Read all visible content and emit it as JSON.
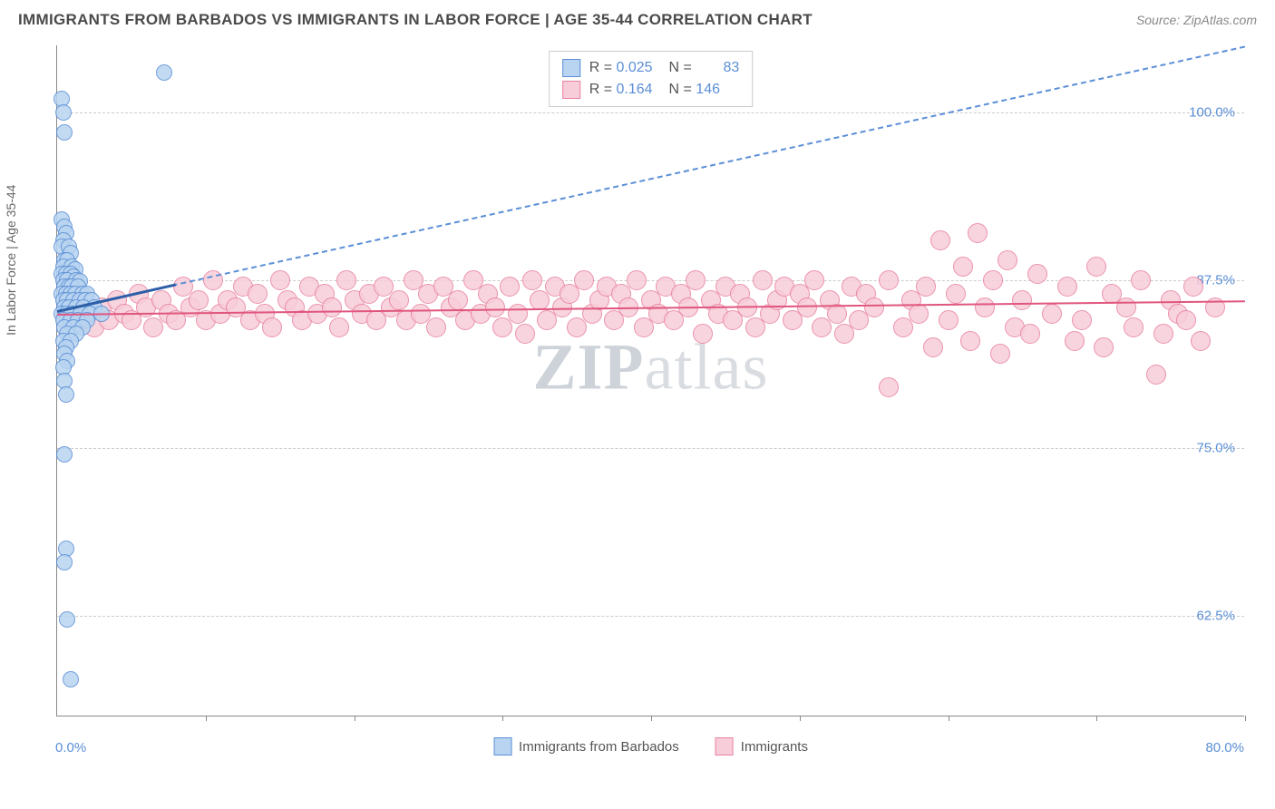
{
  "header": {
    "title": "IMMIGRANTS FROM BARBADOS VS IMMIGRANTS IN LABOR FORCE | AGE 35-44 CORRELATION CHART",
    "source": "Source: ZipAtlas.com"
  },
  "axes": {
    "y_title": "In Labor Force | Age 35-44",
    "x_min_label": "0.0%",
    "x_max_label": "80.0%",
    "xlim": [
      0,
      80
    ],
    "ylim": [
      55,
      105
    ],
    "y_ticks": [
      {
        "value": 62.5,
        "label": "62.5%"
      },
      {
        "value": 75.0,
        "label": "75.0%"
      },
      {
        "value": 87.5,
        "label": "87.5%"
      },
      {
        "value": 100.0,
        "label": "100.0%"
      }
    ],
    "x_tick_positions": [
      10,
      20,
      30,
      40,
      50,
      60,
      70,
      80
    ],
    "grid_color": "#cccccc",
    "axis_color": "#888888"
  },
  "series": {
    "blue": {
      "name": "Immigrants from Barbados",
      "fill": "#b8d4f0",
      "stroke": "#5b8fd6",
      "marker_radius": 9,
      "stats": {
        "R": "0.025",
        "N": "83"
      },
      "trend_solid": {
        "x1": 0,
        "y1": 85.3,
        "x2": 8,
        "y2": 87.3,
        "color": "#2d5fa8",
        "width": 3
      },
      "trend_dashed": {
        "x1": 0,
        "y1": 85.3,
        "x2": 80,
        "y2": 105,
        "color": "#5b8fd6"
      },
      "points": [
        {
          "x": 0.3,
          "y": 101
        },
        {
          "x": 0.4,
          "y": 100
        },
        {
          "x": 0.5,
          "y": 98.5
        },
        {
          "x": 0.3,
          "y": 92
        },
        {
          "x": 0.5,
          "y": 91.5
        },
        {
          "x": 0.6,
          "y": 91
        },
        {
          "x": 0.4,
          "y": 90.5
        },
        {
          "x": 0.3,
          "y": 90
        },
        {
          "x": 0.8,
          "y": 90
        },
        {
          "x": 0.9,
          "y": 89.5
        },
        {
          "x": 0.5,
          "y": 89
        },
        {
          "x": 0.7,
          "y": 89
        },
        {
          "x": 0.4,
          "y": 88.5
        },
        {
          "x": 1.0,
          "y": 88.5
        },
        {
          "x": 1.2,
          "y": 88.3
        },
        {
          "x": 0.3,
          "y": 88
        },
        {
          "x": 0.6,
          "y": 88
        },
        {
          "x": 0.9,
          "y": 88
        },
        {
          "x": 1.1,
          "y": 87.8
        },
        {
          "x": 0.4,
          "y": 87.5
        },
        {
          "x": 0.7,
          "y": 87.5
        },
        {
          "x": 1.3,
          "y": 87.5
        },
        {
          "x": 1.5,
          "y": 87.4
        },
        {
          "x": 0.5,
          "y": 87
        },
        {
          "x": 0.8,
          "y": 87
        },
        {
          "x": 1.0,
          "y": 87
        },
        {
          "x": 1.4,
          "y": 87
        },
        {
          "x": 0.3,
          "y": 86.5
        },
        {
          "x": 0.6,
          "y": 86.5
        },
        {
          "x": 0.9,
          "y": 86.5
        },
        {
          "x": 1.2,
          "y": 86.5
        },
        {
          "x": 1.7,
          "y": 86.5
        },
        {
          "x": 2.0,
          "y": 86.5
        },
        {
          "x": 0.4,
          "y": 86
        },
        {
          "x": 0.7,
          "y": 86
        },
        {
          "x": 1.1,
          "y": 86
        },
        {
          "x": 1.5,
          "y": 86
        },
        {
          "x": 1.9,
          "y": 86
        },
        {
          "x": 2.3,
          "y": 86
        },
        {
          "x": 0.5,
          "y": 85.5
        },
        {
          "x": 0.8,
          "y": 85.5
        },
        {
          "x": 1.3,
          "y": 85.5
        },
        {
          "x": 1.8,
          "y": 85.5
        },
        {
          "x": 2.5,
          "y": 85.5
        },
        {
          "x": 0.3,
          "y": 85
        },
        {
          "x": 0.6,
          "y": 85
        },
        {
          "x": 1.0,
          "y": 85
        },
        {
          "x": 1.6,
          "y": 85
        },
        {
          "x": 2.2,
          "y": 85
        },
        {
          "x": 3.0,
          "y": 85
        },
        {
          "x": 0.4,
          "y": 84.5
        },
        {
          "x": 0.9,
          "y": 84.5
        },
        {
          "x": 1.4,
          "y": 84.5
        },
        {
          "x": 2.0,
          "y": 84.5
        },
        {
          "x": 0.5,
          "y": 84
        },
        {
          "x": 1.1,
          "y": 84
        },
        {
          "x": 1.7,
          "y": 84
        },
        {
          "x": 0.7,
          "y": 83.5
        },
        {
          "x": 1.3,
          "y": 83.5
        },
        {
          "x": 0.4,
          "y": 83
        },
        {
          "x": 0.9,
          "y": 83
        },
        {
          "x": 0.6,
          "y": 82.5
        },
        {
          "x": 0.5,
          "y": 82
        },
        {
          "x": 0.7,
          "y": 81.5
        },
        {
          "x": 0.4,
          "y": 81
        },
        {
          "x": 0.5,
          "y": 80
        },
        {
          "x": 0.6,
          "y": 79
        },
        {
          "x": 0.5,
          "y": 74.5
        },
        {
          "x": 0.6,
          "y": 67.5
        },
        {
          "x": 0.5,
          "y": 66.5
        },
        {
          "x": 0.7,
          "y": 62.2
        },
        {
          "x": 0.9,
          "y": 57.8
        },
        {
          "x": 7.2,
          "y": 103
        }
      ]
    },
    "pink": {
      "name": "Immigrants",
      "fill": "#f7cdd9",
      "stroke": "#e8809e",
      "marker_radius": 11,
      "stats": {
        "R": "0.164",
        "N": "146"
      },
      "trend_solid": {
        "x1": 0,
        "y1": 85.0,
        "x2": 80,
        "y2": 86.0,
        "color": "#e0567e",
        "width": 2
      },
      "points": [
        {
          "x": 1.5,
          "y": 84.5
        },
        {
          "x": 2.0,
          "y": 85
        },
        {
          "x": 2.5,
          "y": 84
        },
        {
          "x": 3.0,
          "y": 85.5
        },
        {
          "x": 3.5,
          "y": 84.5
        },
        {
          "x": 4.0,
          "y": 86
        },
        {
          "x": 4.5,
          "y": 85
        },
        {
          "x": 5.0,
          "y": 84.5
        },
        {
          "x": 5.5,
          "y": 86.5
        },
        {
          "x": 6.0,
          "y": 85.5
        },
        {
          "x": 6.5,
          "y": 84
        },
        {
          "x": 7.0,
          "y": 86
        },
        {
          "x": 7.5,
          "y": 85
        },
        {
          "x": 8.0,
          "y": 84.5
        },
        {
          "x": 8.5,
          "y": 87
        },
        {
          "x": 9.0,
          "y": 85.5
        },
        {
          "x": 9.5,
          "y": 86
        },
        {
          "x": 10,
          "y": 84.5
        },
        {
          "x": 10.5,
          "y": 87.5
        },
        {
          "x": 11,
          "y": 85
        },
        {
          "x": 11.5,
          "y": 86
        },
        {
          "x": 12,
          "y": 85.5
        },
        {
          "x": 12.5,
          "y": 87
        },
        {
          "x": 13,
          "y": 84.5
        },
        {
          "x": 13.5,
          "y": 86.5
        },
        {
          "x": 14,
          "y": 85
        },
        {
          "x": 14.5,
          "y": 84
        },
        {
          "x": 15,
          "y": 87.5
        },
        {
          "x": 15.5,
          "y": 86
        },
        {
          "x": 16,
          "y": 85.5
        },
        {
          "x": 16.5,
          "y": 84.5
        },
        {
          "x": 17,
          "y": 87
        },
        {
          "x": 17.5,
          "y": 85
        },
        {
          "x": 18,
          "y": 86.5
        },
        {
          "x": 18.5,
          "y": 85.5
        },
        {
          "x": 19,
          "y": 84
        },
        {
          "x": 19.5,
          "y": 87.5
        },
        {
          "x": 20,
          "y": 86
        },
        {
          "x": 20.5,
          "y": 85
        },
        {
          "x": 21,
          "y": 86.5
        },
        {
          "x": 21.5,
          "y": 84.5
        },
        {
          "x": 22,
          "y": 87
        },
        {
          "x": 22.5,
          "y": 85.5
        },
        {
          "x": 23,
          "y": 86
        },
        {
          "x": 23.5,
          "y": 84.5
        },
        {
          "x": 24,
          "y": 87.5
        },
        {
          "x": 24.5,
          "y": 85
        },
        {
          "x": 25,
          "y": 86.5
        },
        {
          "x": 25.5,
          "y": 84
        },
        {
          "x": 26,
          "y": 87
        },
        {
          "x": 26.5,
          "y": 85.5
        },
        {
          "x": 27,
          "y": 86
        },
        {
          "x": 27.5,
          "y": 84.5
        },
        {
          "x": 28,
          "y": 87.5
        },
        {
          "x": 28.5,
          "y": 85
        },
        {
          "x": 29,
          "y": 86.5
        },
        {
          "x": 29.5,
          "y": 85.5
        },
        {
          "x": 30,
          "y": 84
        },
        {
          "x": 30.5,
          "y": 87
        },
        {
          "x": 31,
          "y": 85
        },
        {
          "x": 31.5,
          "y": 83.5
        },
        {
          "x": 32,
          "y": 87.5
        },
        {
          "x": 32.5,
          "y": 86
        },
        {
          "x": 33,
          "y": 84.5
        },
        {
          "x": 33.5,
          "y": 87
        },
        {
          "x": 34,
          "y": 85.5
        },
        {
          "x": 34.5,
          "y": 86.5
        },
        {
          "x": 35,
          "y": 84
        },
        {
          "x": 35.5,
          "y": 87.5
        },
        {
          "x": 36,
          "y": 85
        },
        {
          "x": 36.5,
          "y": 86
        },
        {
          "x": 37,
          "y": 87
        },
        {
          "x": 37.5,
          "y": 84.5
        },
        {
          "x": 38,
          "y": 86.5
        },
        {
          "x": 38.5,
          "y": 85.5
        },
        {
          "x": 39,
          "y": 87.5
        },
        {
          "x": 39.5,
          "y": 84
        },
        {
          "x": 40,
          "y": 86
        },
        {
          "x": 40.5,
          "y": 85
        },
        {
          "x": 41,
          "y": 87
        },
        {
          "x": 41.5,
          "y": 84.5
        },
        {
          "x": 42,
          "y": 86.5
        },
        {
          "x": 42.5,
          "y": 85.5
        },
        {
          "x": 43,
          "y": 87.5
        },
        {
          "x": 43.5,
          "y": 83.5
        },
        {
          "x": 44,
          "y": 86
        },
        {
          "x": 44.5,
          "y": 85
        },
        {
          "x": 45,
          "y": 87
        },
        {
          "x": 45.5,
          "y": 84.5
        },
        {
          "x": 46,
          "y": 86.5
        },
        {
          "x": 46.5,
          "y": 85.5
        },
        {
          "x": 47,
          "y": 84
        },
        {
          "x": 47.5,
          "y": 87.5
        },
        {
          "x": 48,
          "y": 85
        },
        {
          "x": 48.5,
          "y": 86
        },
        {
          "x": 49,
          "y": 87
        },
        {
          "x": 49.5,
          "y": 84.5
        },
        {
          "x": 50,
          "y": 86.5
        },
        {
          "x": 50.5,
          "y": 85.5
        },
        {
          "x": 51,
          "y": 87.5
        },
        {
          "x": 51.5,
          "y": 84
        },
        {
          "x": 52,
          "y": 86
        },
        {
          "x": 52.5,
          "y": 85
        },
        {
          "x": 53,
          "y": 83.5
        },
        {
          "x": 53.5,
          "y": 87
        },
        {
          "x": 54,
          "y": 84.5
        },
        {
          "x": 54.5,
          "y": 86.5
        },
        {
          "x": 55,
          "y": 85.5
        },
        {
          "x": 56,
          "y": 79.5
        },
        {
          "x": 56,
          "y": 87.5
        },
        {
          "x": 57,
          "y": 84
        },
        {
          "x": 57.5,
          "y": 86
        },
        {
          "x": 58,
          "y": 85
        },
        {
          "x": 58.5,
          "y": 87
        },
        {
          "x": 59,
          "y": 82.5
        },
        {
          "x": 59.5,
          "y": 90.5
        },
        {
          "x": 60,
          "y": 84.5
        },
        {
          "x": 60.5,
          "y": 86.5
        },
        {
          "x": 61,
          "y": 88.5
        },
        {
          "x": 61.5,
          "y": 83
        },
        {
          "x": 62,
          "y": 91
        },
        {
          "x": 62.5,
          "y": 85.5
        },
        {
          "x": 63,
          "y": 87.5
        },
        {
          "x": 63.5,
          "y": 82
        },
        {
          "x": 64,
          "y": 89
        },
        {
          "x": 64.5,
          "y": 84
        },
        {
          "x": 65,
          "y": 86
        },
        {
          "x": 65.5,
          "y": 83.5
        },
        {
          "x": 66,
          "y": 88
        },
        {
          "x": 67,
          "y": 85
        },
        {
          "x": 68,
          "y": 87
        },
        {
          "x": 68.5,
          "y": 83
        },
        {
          "x": 69,
          "y": 84.5
        },
        {
          "x": 70,
          "y": 88.5
        },
        {
          "x": 70.5,
          "y": 82.5
        },
        {
          "x": 71,
          "y": 86.5
        },
        {
          "x": 72,
          "y": 85.5
        },
        {
          "x": 72.5,
          "y": 84
        },
        {
          "x": 73,
          "y": 87.5
        },
        {
          "x": 74,
          "y": 80.5
        },
        {
          "x": 74.5,
          "y": 83.5
        },
        {
          "x": 75,
          "y": 86
        },
        {
          "x": 75.5,
          "y": 85
        },
        {
          "x": 76,
          "y": 84.5
        },
        {
          "x": 76.5,
          "y": 87
        },
        {
          "x": 77,
          "y": 83
        },
        {
          "x": 78,
          "y": 85.5
        }
      ]
    }
  },
  "legend_top": {
    "labels": {
      "R": "R =",
      "N": "N ="
    }
  },
  "legend_bottom": [
    {
      "key": "blue"
    },
    {
      "key": "pink"
    }
  ],
  "watermark": {
    "part1": "ZIP",
    "part2": "atlas"
  },
  "colors": {
    "label_blue": "#5b8fd6",
    "text_gray": "#666666"
  }
}
